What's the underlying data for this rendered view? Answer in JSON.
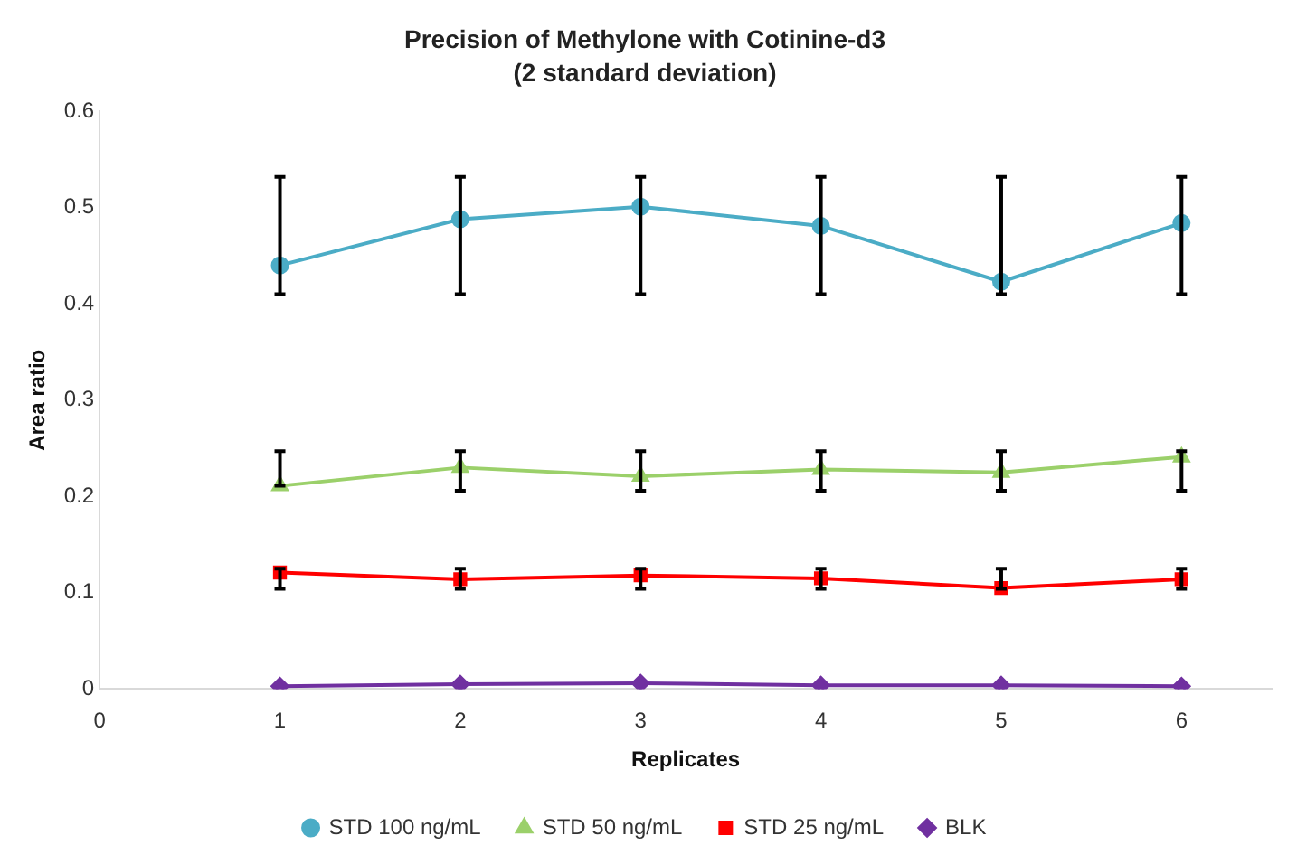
{
  "chart_data": {
    "type": "line",
    "title": "Precision of Methylone with Cotinine-d3",
    "subtitle": "(2 standard deviation)",
    "xlabel": "Replicates",
    "ylabel": "Area ratio",
    "x": [
      1,
      2,
      3,
      4,
      5,
      6
    ],
    "xlim": [
      0,
      6.5
    ],
    "xticks": [
      0,
      1,
      2,
      3,
      4,
      5,
      6
    ],
    "ylim": [
      0,
      0.6
    ],
    "yticks": [
      0,
      0.1,
      0.2,
      0.3,
      0.4,
      0.5,
      0.6
    ],
    "grid": false,
    "legend": "bottom",
    "line_style": "solid",
    "series": [
      {
        "name": "STD 100 ng/mL",
        "color": "#4bacc6",
        "marker": "circle",
        "values": [
          0.44,
          0.488,
          0.501,
          0.481,
          0.423,
          0.484
        ],
        "errors": [
          [
            0.41,
            0.532
          ],
          [
            0.41,
            0.532
          ],
          [
            0.41,
            0.532
          ],
          [
            0.41,
            0.532
          ],
          [
            0.41,
            0.532
          ],
          [
            0.41,
            0.532
          ]
        ]
      },
      {
        "name": "STD 50 ng/mL",
        "color": "#9bd06a",
        "marker": "triangle",
        "values": [
          0.211,
          0.23,
          0.221,
          0.228,
          0.225,
          0.241
        ],
        "errors": [
          [
            0.211,
            0.247
          ],
          [
            0.206,
            0.247
          ],
          [
            0.206,
            0.247
          ],
          [
            0.206,
            0.247
          ],
          [
            0.206,
            0.247
          ],
          [
            0.206,
            0.247
          ]
        ]
      },
      {
        "name": "STD 25 ng/mL",
        "color": "#ff0000",
        "marker": "square",
        "values": [
          0.121,
          0.114,
          0.118,
          0.115,
          0.105,
          0.114
        ],
        "errors": [
          [
            0.104,
            0.125
          ],
          [
            0.104,
            0.125
          ],
          [
            0.104,
            0.125
          ],
          [
            0.104,
            0.125
          ],
          [
            0.104,
            0.125
          ],
          [
            0.104,
            0.125
          ]
        ]
      },
      {
        "name": "BLK",
        "color": "#7030a0",
        "marker": "diamond",
        "values": [
          0.003,
          0.005,
          0.006,
          0.004,
          0.004,
          0.003
        ]
      }
    ]
  }
}
